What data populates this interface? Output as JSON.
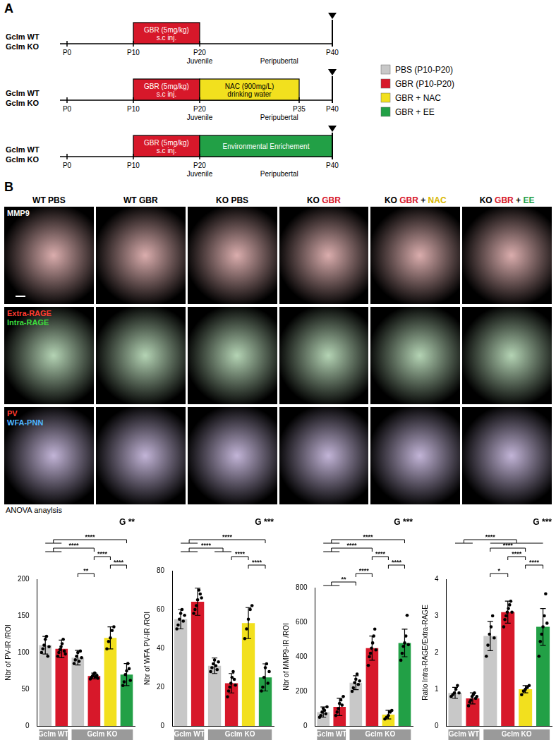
{
  "panel_a": {
    "label": "A",
    "timelines": [
      {
        "groups": [
          "Gclm WT",
          "Gclm KO"
        ],
        "ticks": [
          {
            "label": "P0",
            "day": 0
          },
          {
            "label": "P10",
            "day": 10
          },
          {
            "label": "P20",
            "day": 20
          },
          {
            "label": "P40",
            "day": 40
          }
        ],
        "stages": [
          {
            "label": "Juvenile",
            "day": 20
          },
          {
            "label": "Peripubertal",
            "day": 32
          }
        ],
        "end_marker_day": 40,
        "treatments": [
          {
            "lines": [
              "GBR (5mg/kg)",
              "s.c inj."
            ],
            "start": 10,
            "end": 20,
            "color": "#d7182a"
          }
        ]
      },
      {
        "groups": [
          "Gclm WT",
          "Gclm KO"
        ],
        "ticks": [
          {
            "label": "P0",
            "day": 0
          },
          {
            "label": "P10",
            "day": 10
          },
          {
            "label": "P20",
            "day": 20
          },
          {
            "label": "P35",
            "day": 35
          },
          {
            "label": "P40",
            "day": 40
          }
        ],
        "stages": [
          {
            "label": "Juvenile",
            "day": 20
          },
          {
            "label": "Peripubertal",
            "day": 32
          }
        ],
        "end_marker_day": 40,
        "treatments": [
          {
            "lines": [
              "GBR (5mg/kg)",
              "s.c inj."
            ],
            "start": 10,
            "end": 20,
            "color": "#d7182a"
          },
          {
            "lines": [
              "NAC (900mg/L)",
              "drinking water"
            ],
            "start": 20,
            "end": 35,
            "color": "#f2e01e"
          }
        ]
      },
      {
        "groups": [
          "Gclm WT",
          "Gclm KO"
        ],
        "ticks": [
          {
            "label": "P0",
            "day": 0
          },
          {
            "label": "P10",
            "day": 10
          },
          {
            "label": "P20",
            "day": 20
          },
          {
            "label": "P40",
            "day": 40
          }
        ],
        "stages": [
          {
            "label": "Juvenile",
            "day": 20
          },
          {
            "label": "Peripubertal",
            "day": 32
          }
        ],
        "end_marker_day": 40,
        "treatments": [
          {
            "lines": [
              "GBR (5mg/kg)",
              "s.c inj."
            ],
            "start": 10,
            "end": 20,
            "color": "#d7182a"
          },
          {
            "lines": [
              "Environmental Enrichement"
            ],
            "start": 20,
            "end": 40,
            "color": "#22a046"
          }
        ]
      }
    ],
    "legend": [
      {
        "label": "PBS (P10-P20)",
        "color": "#c8c8c8"
      },
      {
        "label": "GBR (P10-P20)",
        "color": "#d7182a"
      },
      {
        "label": "GBR + NAC",
        "color": "#f2e01e"
      },
      {
        "label": "GBR + EE",
        "color": "#22a046"
      }
    ]
  },
  "panel_b": {
    "label": "B",
    "columns": [
      [
        {
          "text": "WT PBS"
        }
      ],
      [
        {
          "text": "WT GBR"
        }
      ],
      [
        {
          "text": "KO PBS"
        }
      ],
      [
        {
          "text": "KO"
        },
        {
          "text": "GBR",
          "color": "#d7182a"
        }
      ],
      [
        {
          "text": "KO"
        },
        {
          "text": "GBR",
          "color": "#d7182a"
        },
        {
          "text": "+"
        },
        {
          "text": "NAC",
          "color": "#d9b800"
        }
      ],
      [
        {
          "text": "KO"
        },
        {
          "text": "GBR",
          "color": "#d7182a"
        },
        {
          "text": "+"
        },
        {
          "text": "EE",
          "color": "#22a046"
        }
      ]
    ],
    "rows": [
      {
        "labels": [
          {
            "text": "MMP9",
            "color": "#ffffff"
          }
        ]
      },
      {
        "labels": [
          {
            "text": "Extra-RAGE",
            "color": "#ff3b30"
          },
          {
            "text": "Intra-RAGE",
            "color": "#3ddc3d"
          }
        ]
      },
      {
        "labels": [
          {
            "text": "PV",
            "color": "#ff3b30"
          },
          {
            "text": "WFA-PNN",
            "color": "#4fb6ff"
          }
        ]
      }
    ]
  },
  "analysis_label": "ANOVA anaylsis",
  "chart_data": [
    {
      "type": "bar",
      "ylabel": "Nbr of PV-IR /ROI",
      "anova": "G **",
      "categories": [
        null,
        null,
        null,
        null,
        null,
        null
      ],
      "values": [
        110,
        105,
        93,
        68,
        120,
        70
      ],
      "errors": [
        12,
        12,
        10,
        4,
        15,
        15
      ],
      "points": [
        [
          100,
          105,
          110,
          118,
          122,
          95,
          108
        ],
        [
          95,
          100,
          104,
          108,
          112,
          118,
          102,
          98
        ],
        [
          85,
          90,
          95,
          100,
          88,
          102,
          93
        ],
        [
          64,
          66,
          68,
          70,
          72,
          67,
          69,
          65
        ],
        [
          105,
          115,
          120,
          130,
          135
        ],
        [
          55,
          60,
          70,
          75,
          85,
          78,
          62
        ]
      ],
      "colors": [
        "#c8c8c8",
        "#d7182a",
        "#c8c8c8",
        "#d7182a",
        "#f2e01e",
        "#22a046"
      ],
      "ylim": [
        0,
        200
      ],
      "yticks": [
        0,
        50,
        100,
        150,
        200
      ],
      "grid": false,
      "tick_labels": "y",
      "groups": [
        {
          "label": "Gclm WT",
          "members": [
            0,
            1
          ]
        },
        {
          "label": "Gclm KO",
          "members": [
            2,
            3,
            4,
            5
          ]
        }
      ],
      "comparisons": [
        {
          "left": [
            0,
            1
          ],
          "right": [
            5
          ],
          "label": "****"
        },
        {
          "left": [
            0,
            1
          ],
          "right": [
            3
          ],
          "label": "****"
        },
        {
          "left": [
            3
          ],
          "right": [
            4
          ],
          "label": "****"
        },
        {
          "left": [
            4
          ],
          "right": [
            5
          ],
          "label": "****"
        },
        {
          "left": [
            2
          ],
          "right": [
            3
          ],
          "label": "**"
        }
      ]
    },
    {
      "type": "bar",
      "ylabel": "Nbr of WFA PV-IR /ROI",
      "anova": "G ***",
      "categories": [
        null,
        null,
        null,
        null,
        null,
        null
      ],
      "values": [
        55,
        64,
        31,
        22,
        53,
        25
      ],
      "errors": [
        5,
        7,
        4,
        5,
        8,
        7
      ],
      "points": [
        [
          50,
          52,
          55,
          58,
          60,
          54,
          57
        ],
        [
          58,
          60,
          62,
          65,
          70,
          68,
          66
        ],
        [
          28,
          30,
          32,
          34,
          31,
          29,
          33
        ],
        [
          15,
          18,
          20,
          22,
          25,
          28,
          24,
          21
        ],
        [
          45,
          50,
          55,
          60,
          62
        ],
        [
          18,
          20,
          25,
          30,
          32,
          22,
          28
        ]
      ],
      "colors": [
        "#c8c8c8",
        "#d7182a",
        "#c8c8c8",
        "#d7182a",
        "#f2e01e",
        "#22a046"
      ],
      "ylim": [
        0,
        80
      ],
      "yticks": [
        0,
        20,
        40,
        60,
        80
      ],
      "grid": false,
      "tick_labels": "y",
      "groups": [
        {
          "label": "Gclm WT",
          "members": [
            0,
            1
          ]
        },
        {
          "label": "Gclm KO",
          "members": [
            2,
            3,
            4,
            5
          ]
        }
      ],
      "comparisons": [
        {
          "left": [
            0,
            1
          ],
          "right": [
            5
          ],
          "label": "****"
        },
        {
          "left": [
            0,
            1
          ],
          "right": [
            2,
            3
          ],
          "label": "****"
        },
        {
          "left": [
            3
          ],
          "right": [
            4
          ],
          "label": "****"
        },
        {
          "left": [
            4
          ],
          "right": [
            5
          ],
          "label": "****"
        }
      ]
    },
    {
      "type": "bar",
      "ylabel": "Nbr of MMP9-IR /ROI",
      "anova": "G ***",
      "categories": [
        null,
        null,
        null,
        null,
        null,
        null
      ],
      "values": [
        80,
        110,
        250,
        450,
        65,
        480
      ],
      "errors": [
        30,
        50,
        40,
        70,
        25,
        80
      ],
      "points": [
        [
          50,
          60,
          80,
          100,
          90,
          70,
          110
        ],
        [
          60,
          80,
          100,
          130,
          150,
          120,
          170
        ],
        [
          200,
          220,
          250,
          270,
          300,
          240,
          260
        ],
        [
          350,
          400,
          420,
          450,
          480,
          520,
          560,
          440
        ],
        [
          40,
          50,
          60,
          80,
          90
        ],
        [
          380,
          420,
          460,
          480,
          520,
          640,
          470
        ]
      ],
      "colors": [
        "#c8c8c8",
        "#d7182a",
        "#c8c8c8",
        "#d7182a",
        "#f2e01e",
        "#22a046"
      ],
      "ylim": [
        0,
        800
      ],
      "yticks": [
        0,
        200,
        400,
        600,
        800
      ],
      "grid": false,
      "tick_labels": "y",
      "groups": [
        {
          "label": "Gclm WT",
          "members": [
            0,
            1
          ]
        },
        {
          "label": "Gclm KO",
          "members": [
            2,
            3,
            4,
            5
          ]
        }
      ],
      "comparisons": [
        {
          "left": [
            0,
            1
          ],
          "right": [
            5
          ],
          "label": "****"
        },
        {
          "left": [
            0,
            1
          ],
          "right": [
            3
          ],
          "label": "****"
        },
        {
          "left": [
            3
          ],
          "right": [
            4
          ],
          "label": "****"
        },
        {
          "left": [
            4
          ],
          "right": [
            5
          ],
          "label": "****"
        },
        {
          "left": [
            2
          ],
          "right": [
            3
          ],
          "label": "****"
        },
        {
          "left": [
            0,
            1
          ],
          "right": [
            2
          ],
          "label": "**"
        }
      ]
    },
    {
      "type": "bar",
      "ylabel": "Ratio Intra-RAGE/Extra-RAGE",
      "anova": "G ***",
      "categories": [
        null,
        null,
        null,
        null,
        null,
        null
      ],
      "values": [
        0.9,
        0.75,
        2.45,
        3.1,
        1.0,
        2.7
      ],
      "errors": [
        0.15,
        0.15,
        0.4,
        0.3,
        0.1,
        0.5
      ],
      "points": [
        [
          0.8,
          0.85,
          0.9,
          1.0,
          1.1,
          0.9
        ],
        [
          0.55,
          0.65,
          0.7,
          0.8,
          0.85,
          0.9,
          0.75,
          0.8
        ],
        [
          1.9,
          2.2,
          2.5,
          2.7,
          3.0,
          2.4
        ],
        [
          2.7,
          2.9,
          3.0,
          3.1,
          3.2,
          3.3,
          3.4,
          3.1
        ],
        [
          0.85,
          0.95,
          1.0,
          1.05,
          1.1
        ],
        [
          1.9,
          2.3,
          2.5,
          2.7,
          3.0,
          3.6,
          2.8
        ]
      ],
      "colors": [
        "#c8c8c8",
        "#d7182a",
        "#c8c8c8",
        "#d7182a",
        "#f2e01e",
        "#22a046"
      ],
      "ylim": [
        0,
        4
      ],
      "yticks": [
        0,
        1,
        2,
        3,
        4
      ],
      "grid": false,
      "tick_labels": "y",
      "groups": [
        {
          "label": "Gclm WT",
          "members": [
            0,
            1
          ]
        },
        {
          "label": "Gclm KO",
          "members": [
            2,
            3,
            4,
            5
          ]
        }
      ],
      "comparisons": [
        {
          "left": [
            0,
            1
          ],
          "right": [
            2,
            3,
            4,
            5
          ],
          "label": "****"
        },
        {
          "left": [
            2
          ],
          "right": [
            4
          ],
          "label": "****"
        },
        {
          "left": [
            3
          ],
          "right": [
            4
          ],
          "label": "****"
        },
        {
          "left": [
            4
          ],
          "right": [
            5
          ],
          "label": "****"
        },
        {
          "left": [
            2
          ],
          "right": [
            3
          ],
          "label": "*"
        }
      ]
    }
  ]
}
